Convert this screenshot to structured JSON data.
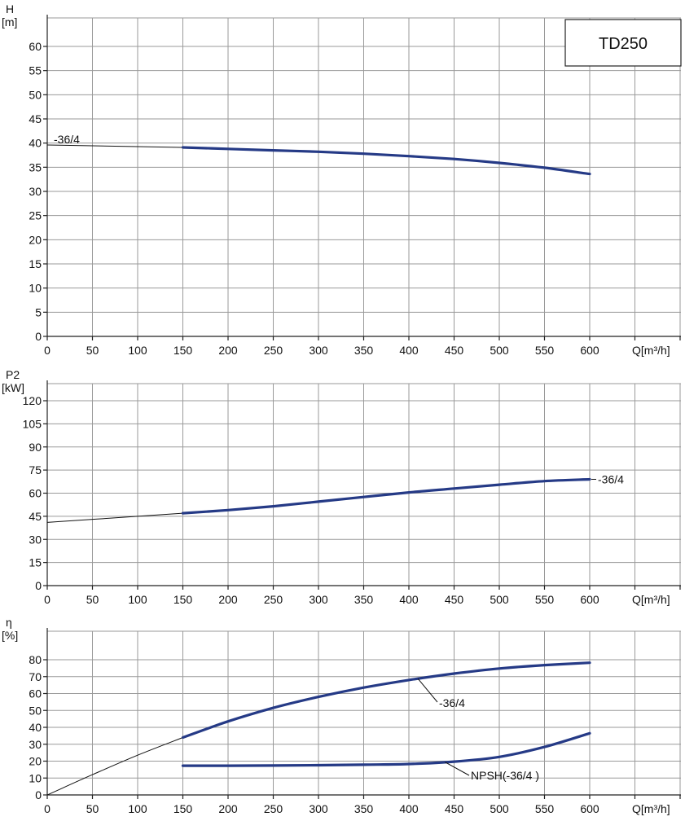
{
  "model_label": "TD250",
  "chart_data": [
    {
      "type": "line",
      "y_title": "H",
      "y_unit": "[m]",
      "x_axis_label": "Q[m³/h]",
      "xlim": [
        0,
        700
      ],
      "ylim": [
        0,
        65
      ],
      "x_ticks": [
        0,
        50,
        100,
        150,
        200,
        250,
        300,
        350,
        400,
        450,
        500,
        550,
        600
      ],
      "y_ticks": [
        0,
        5,
        10,
        15,
        20,
        25,
        30,
        35,
        40,
        45,
        50,
        55,
        60
      ],
      "grid": true,
      "series": [
        {
          "name": "-36/4",
          "x": [
            0,
            150,
            200,
            250,
            300,
            350,
            400,
            450,
            500,
            550,
            600
          ],
          "y": [
            39.6,
            39.1,
            38.8,
            38.5,
            38.2,
            37.8,
            37.3,
            36.7,
            35.9,
            34.9,
            33.6
          ],
          "thin_until_x": 150
        }
      ]
    },
    {
      "type": "line",
      "y_title": "P2",
      "y_unit": "[kW]",
      "x_axis_label": "Q[m³/h]",
      "xlim": [
        0,
        700
      ],
      "ylim": [
        0,
        130
      ],
      "x_ticks": [
        0,
        50,
        100,
        150,
        200,
        250,
        300,
        350,
        400,
        450,
        500,
        550,
        600
      ],
      "y_ticks": [
        0,
        15,
        30,
        45,
        60,
        75,
        90,
        105,
        120
      ],
      "grid": true,
      "series": [
        {
          "name": "-36/4",
          "x": [
            0,
            100,
            150,
            200,
            250,
            300,
            350,
            400,
            450,
            500,
            550,
            600
          ],
          "y": [
            41,
            45,
            47,
            49,
            51.5,
            54.5,
            57.5,
            60.5,
            63,
            65.5,
            67.8,
            69
          ],
          "thin_until_x": 150
        }
      ]
    },
    {
      "type": "line",
      "y_title": "η",
      "y_unit": "[%]",
      "x_axis_label": "Q[m³/h]",
      "xlim": [
        0,
        700
      ],
      "ylim": [
        0,
        88
      ],
      "x_ticks": [
        0,
        50,
        100,
        150,
        200,
        250,
        300,
        350,
        400,
        450,
        500,
        550,
        600
      ],
      "y_ticks": [
        0,
        10,
        20,
        30,
        40,
        50,
        60,
        70,
        80
      ],
      "grid": true,
      "series": [
        {
          "name": "-36/4",
          "x": [
            0,
            50,
            100,
            150,
            200,
            250,
            300,
            350,
            400,
            450,
            500,
            550,
            600
          ],
          "y": [
            0,
            12,
            23.5,
            34,
            43.5,
            51.5,
            58,
            63.5,
            68,
            71.8,
            74.8,
            76.8,
            78.2
          ],
          "thin_until_x": 150
        },
        {
          "name": "NPSH(-36/4 )",
          "x": [
            150,
            200,
            250,
            300,
            350,
            400,
            450,
            500,
            550,
            600
          ],
          "y": [
            17.3,
            17.3,
            17.4,
            17.6,
            17.9,
            18.3,
            19.7,
            22.5,
            28.4,
            36.5
          ],
          "thin_until_x": 0
        }
      ]
    }
  ]
}
